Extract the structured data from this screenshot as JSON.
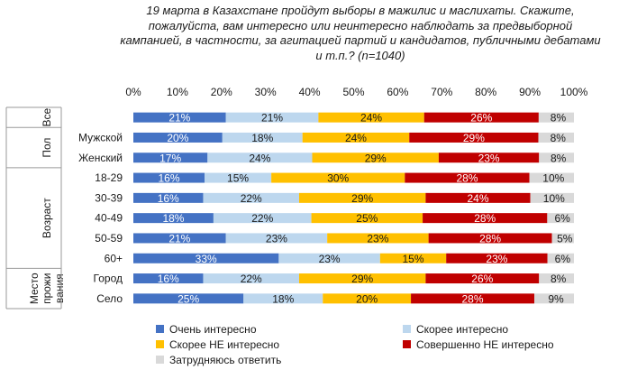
{
  "chart_data": {
    "type": "bar",
    "stacked": true,
    "orientation": "horizontal",
    "title": "19 марта в Казахстане пройдут выборы в мажилис и маслихаты. Скажите, пожалуйста, вам интересно или неинтересно наблюдать за предвыборной кампанией, в частности, за агитацией партий и кандидатов, публичными дебатами и т.п.? (n=1040)",
    "xlim": [
      0,
      100
    ],
    "xticks": [
      "0%",
      "10%",
      "20%",
      "30%",
      "40%",
      "50%",
      "60%",
      "70%",
      "80%",
      "90%",
      "100%"
    ],
    "groups": [
      {
        "label": "Все",
        "rows": [
          ""
        ]
      },
      {
        "label": "Пол",
        "rows": [
          "Мужской",
          "Женский"
        ]
      },
      {
        "label": "Возраст",
        "rows": [
          "18-29",
          "30-39",
          "40-49",
          "50-59",
          "60+"
        ]
      },
      {
        "label": "Место проживания",
        "label_lines": [
          "Место",
          "прожи",
          "вания"
        ],
        "rows": [
          "Город",
          "Село"
        ]
      }
    ],
    "categories": [
      "Все",
      "Мужской",
      "Женский",
      "18-29",
      "30-39",
      "40-49",
      "50-59",
      "60+",
      "Город",
      "Село"
    ],
    "series": [
      {
        "name": "Очень интересно",
        "color": "#4472c4",
        "values": [
          21,
          20,
          17,
          16,
          16,
          18,
          21,
          33,
          16,
          25
        ]
      },
      {
        "name": "Скорее интересно",
        "color": "#bdd7ee",
        "values": [
          21,
          18,
          24,
          15,
          22,
          22,
          23,
          23,
          22,
          18
        ]
      },
      {
        "name": "Скорее НЕ интересно",
        "color": "#ffc000",
        "values": [
          24,
          24,
          29,
          30,
          29,
          25,
          23,
          15,
          29,
          20
        ]
      },
      {
        "name": "Совершенно НЕ интересно",
        "color": "#c00000",
        "values": [
          26,
          29,
          23,
          28,
          24,
          28,
          28,
          23,
          26,
          28
        ]
      },
      {
        "name": "Затрудняюсь ответить",
        "color": "#d9d9d9",
        "values": [
          8,
          8,
          8,
          10,
          10,
          6,
          5,
          6,
          8,
          9
        ]
      }
    ],
    "legend_position": "bottom",
    "grid": false
  }
}
